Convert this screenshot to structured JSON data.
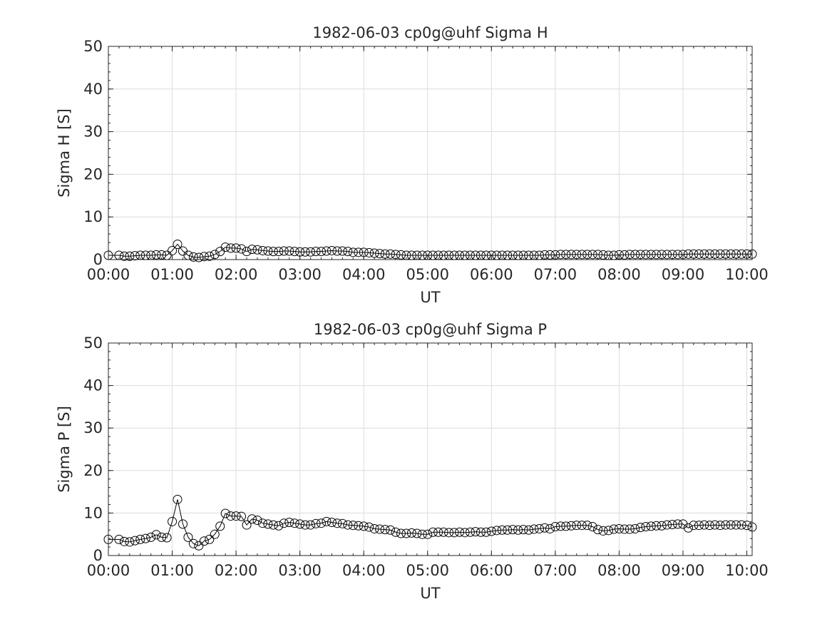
{
  "chart_data": [
    {
      "type": "line",
      "title": "1982-06-03  cp0g@uhf Sigma H",
      "xlabel": "UT",
      "ylabel": "Sigma H [S]",
      "xlim": [
        "00:00",
        "10:05"
      ],
      "ylim": [
        0,
        50
      ],
      "xticks": [
        "00:00",
        "01:00",
        "02:00",
        "03:00",
        "04:00",
        "05:00",
        "06:00",
        "07:00",
        "08:00",
        "09:00",
        "10:00"
      ],
      "yticks": [
        "0",
        "10",
        "20",
        "30",
        "40",
        "50"
      ],
      "grid": true,
      "marker": "open-circle",
      "series": [
        {
          "x": [
            "00:00",
            "00:10",
            "00:15",
            "00:20",
            "00:25",
            "00:30",
            "00:35",
            "00:40",
            "00:45",
            "00:50",
            "00:55",
            "01:00",
            "01:05",
            "01:10",
            "01:15",
            "01:20",
            "01:25",
            "01:30",
            "01:35",
            "01:40",
            "01:45",
            "01:50",
            "01:55",
            "02:00",
            "02:05",
            "02:10",
            "02:15",
            "02:20",
            "02:25",
            "02:30",
            "02:35",
            "02:40",
            "02:45",
            "02:50",
            "02:55",
            "03:00",
            "03:05",
            "03:10",
            "03:15",
            "03:20",
            "03:25",
            "03:30",
            "03:35",
            "03:40",
            "03:45",
            "03:50",
            "03:55",
            "04:00",
            "04:05",
            "04:10",
            "04:15",
            "04:20",
            "04:25",
            "04:30",
            "04:35",
            "04:40",
            "04:45",
            "04:50",
            "04:55",
            "05:00",
            "05:05",
            "05:10",
            "05:15",
            "05:20",
            "05:25",
            "05:30",
            "05:35",
            "05:40",
            "05:45",
            "05:50",
            "05:55",
            "06:00",
            "06:05",
            "06:10",
            "06:15",
            "06:20",
            "06:25",
            "06:30",
            "06:35",
            "06:40",
            "06:45",
            "06:50",
            "06:55",
            "07:00",
            "07:05",
            "07:10",
            "07:15",
            "07:20",
            "07:25",
            "07:30",
            "07:35",
            "07:40",
            "07:45",
            "07:50",
            "07:55",
            "08:00",
            "08:05",
            "08:10",
            "08:15",
            "08:20",
            "08:25",
            "08:30",
            "08:35",
            "08:40",
            "08:45",
            "08:50",
            "08:55",
            "09:00",
            "09:05",
            "09:10",
            "09:15",
            "09:20",
            "09:25",
            "09:30",
            "09:35",
            "09:40",
            "09:45",
            "09:50",
            "09:55",
            "10:00",
            "10:05"
          ],
          "values": [
            1.0,
            1.0,
            0.8,
            0.8,
            0.9,
            1.0,
            1.0,
            1.0,
            1.1,
            1.1,
            1.0,
            2.1,
            3.6,
            2.0,
            1.0,
            0.6,
            0.5,
            0.7,
            0.8,
            1.2,
            1.9,
            2.9,
            2.7,
            2.7,
            2.5,
            1.9,
            2.4,
            2.3,
            2.1,
            2.0,
            1.9,
            1.9,
            2.0,
            2.0,
            1.9,
            1.8,
            1.8,
            1.8,
            1.9,
            1.9,
            2.0,
            2.1,
            2.0,
            2.0,
            1.9,
            1.7,
            1.7,
            1.7,
            1.6,
            1.5,
            1.4,
            1.3,
            1.3,
            1.2,
            1.1,
            1.0,
            1.0,
            1.0,
            1.0,
            1.0,
            1.0,
            1.0,
            1.0,
            1.0,
            1.0,
            1.0,
            1.0,
            1.0,
            1.0,
            1.0,
            1.0,
            1.0,
            1.0,
            1.0,
            1.0,
            1.0,
            1.0,
            1.0,
            1.0,
            1.0,
            1.0,
            1.1,
            1.1,
            1.1,
            1.2,
            1.2,
            1.2,
            1.2,
            1.2,
            1.2,
            1.2,
            1.2,
            1.1,
            1.0,
            1.0,
            1.1,
            1.1,
            1.2,
            1.2,
            1.2,
            1.2,
            1.2,
            1.2,
            1.2,
            1.2,
            1.2,
            1.2,
            1.2,
            1.3,
            1.3,
            1.3,
            1.3,
            1.3,
            1.3,
            1.3,
            1.3,
            1.3,
            1.3,
            1.3,
            1.3,
            1.3
          ]
        }
      ]
    },
    {
      "type": "line",
      "title": "1982-06-03  cp0g@uhf Sigma P",
      "xlabel": "UT",
      "ylabel": "Sigma P [S]",
      "xlim": [
        "00:00",
        "10:05"
      ],
      "ylim": [
        0,
        50
      ],
      "xticks": [
        "00:00",
        "01:00",
        "02:00",
        "03:00",
        "04:00",
        "05:00",
        "06:00",
        "07:00",
        "08:00",
        "09:00",
        "10:00"
      ],
      "yticks": [
        "0",
        "10",
        "20",
        "30",
        "40",
        "50"
      ],
      "grid": true,
      "marker": "open-circle",
      "series": [
        {
          "x": [
            "00:00",
            "00:10",
            "00:15",
            "00:20",
            "00:25",
            "00:30",
            "00:35",
            "00:40",
            "00:45",
            "00:50",
            "00:55",
            "01:00",
            "01:05",
            "01:10",
            "01:15",
            "01:20",
            "01:25",
            "01:30",
            "01:35",
            "01:40",
            "01:45",
            "01:50",
            "01:55",
            "02:00",
            "02:05",
            "02:10",
            "02:15",
            "02:20",
            "02:25",
            "02:30",
            "02:35",
            "02:40",
            "02:45",
            "02:50",
            "02:55",
            "03:00",
            "03:05",
            "03:10",
            "03:15",
            "03:20",
            "03:25",
            "03:30",
            "03:35",
            "03:40",
            "03:45",
            "03:50",
            "03:55",
            "04:00",
            "04:05",
            "04:10",
            "04:15",
            "04:20",
            "04:25",
            "04:30",
            "04:35",
            "04:40",
            "04:45",
            "04:50",
            "04:55",
            "05:00",
            "05:05",
            "05:10",
            "05:15",
            "05:20",
            "05:25",
            "05:30",
            "05:35",
            "05:40",
            "05:45",
            "05:50",
            "05:55",
            "06:00",
            "06:05",
            "06:10",
            "06:15",
            "06:20",
            "06:25",
            "06:30",
            "06:35",
            "06:40",
            "06:45",
            "06:50",
            "06:55",
            "07:00",
            "07:05",
            "07:10",
            "07:15",
            "07:20",
            "07:25",
            "07:30",
            "07:35",
            "07:40",
            "07:45",
            "07:50",
            "07:55",
            "08:00",
            "08:05",
            "08:10",
            "08:15",
            "08:20",
            "08:25",
            "08:30",
            "08:35",
            "08:40",
            "08:45",
            "08:50",
            "08:55",
            "09:00",
            "09:05",
            "09:10",
            "09:15",
            "09:20",
            "09:25",
            "09:30",
            "09:35",
            "09:40",
            "09:45",
            "09:50",
            "09:55",
            "10:00",
            "10:05"
          ],
          "values": [
            3.8,
            3.8,
            3.3,
            3.2,
            3.5,
            3.8,
            4.0,
            4.3,
            4.9,
            4.3,
            4.2,
            8.0,
            13.2,
            7.4,
            4.3,
            2.8,
            2.3,
            3.4,
            3.8,
            5.0,
            6.9,
            9.9,
            9.3,
            9.3,
            9.2,
            7.2,
            8.6,
            8.3,
            7.6,
            7.4,
            7.2,
            7.0,
            7.6,
            7.8,
            7.6,
            7.4,
            7.2,
            7.2,
            7.5,
            7.6,
            8.0,
            7.8,
            7.6,
            7.5,
            7.2,
            7.1,
            7.0,
            6.9,
            6.7,
            6.3,
            6.2,
            6.1,
            6.0,
            5.5,
            5.2,
            5.2,
            5.3,
            5.2,
            5.0,
            5.0,
            5.5,
            5.5,
            5.5,
            5.4,
            5.4,
            5.5,
            5.4,
            5.5,
            5.6,
            5.5,
            5.5,
            5.7,
            5.9,
            6.0,
            6.0,
            6.1,
            6.0,
            6.1,
            6.0,
            6.2,
            6.3,
            6.5,
            6.3,
            6.8,
            6.9,
            6.9,
            7.0,
            7.1,
            7.1,
            7.1,
            6.8,
            6.1,
            5.8,
            5.9,
            6.2,
            6.3,
            6.2,
            6.2,
            6.3,
            6.6,
            6.8,
            6.9,
            7.0,
            7.0,
            7.2,
            7.3,
            7.4,
            7.4,
            6.5,
            7.1,
            7.1,
            7.2,
            7.1,
            7.2,
            7.1,
            7.2,
            7.2,
            7.2,
            7.2,
            7.1,
            6.7
          ]
        }
      ]
    }
  ]
}
